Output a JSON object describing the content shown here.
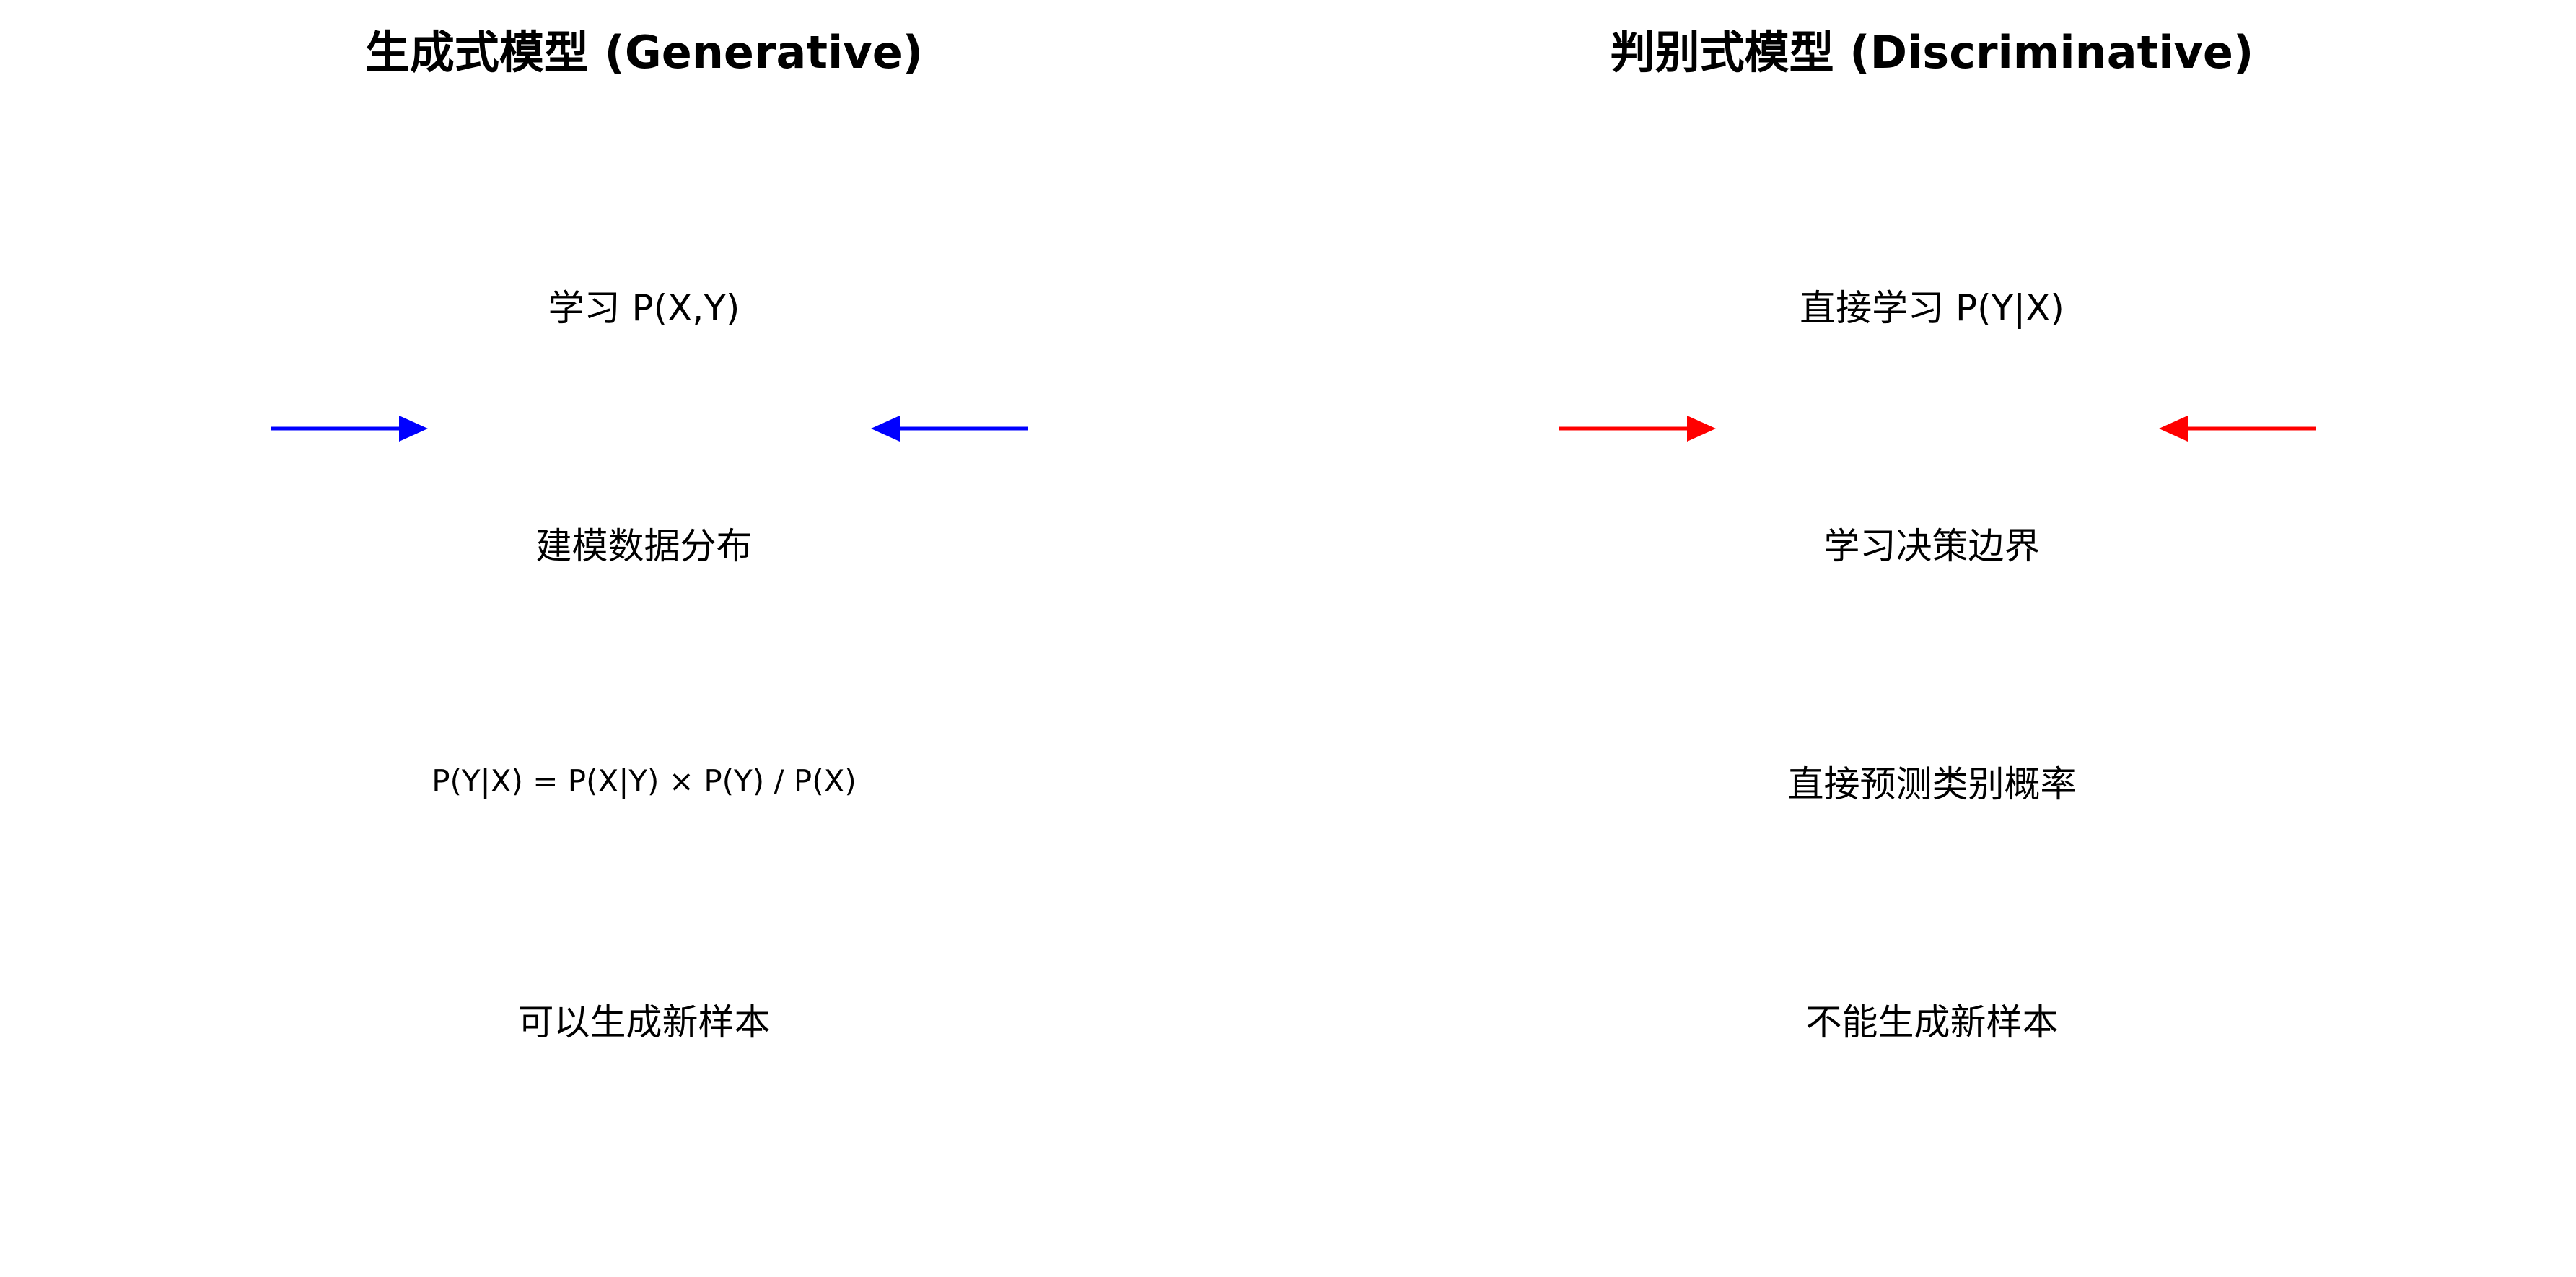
{
  "generative": {
    "title": "生成式模型 (Generative)",
    "steps": [
      "学习 P(X,Y)",
      "建模数据分布",
      "P(Y|X) = P(X|Y) × P(Y) / P(X)",
      "可以生成新样本"
    ],
    "arrow_color": "#0000ff"
  },
  "discriminative": {
    "title": "判别式模型 (Discriminative)",
    "steps": [
      "直接学习 P(Y|X)",
      "学习决策边界",
      "直接预测类别概率",
      "不能生成新样本"
    ],
    "arrow_color": "#ff0000"
  }
}
